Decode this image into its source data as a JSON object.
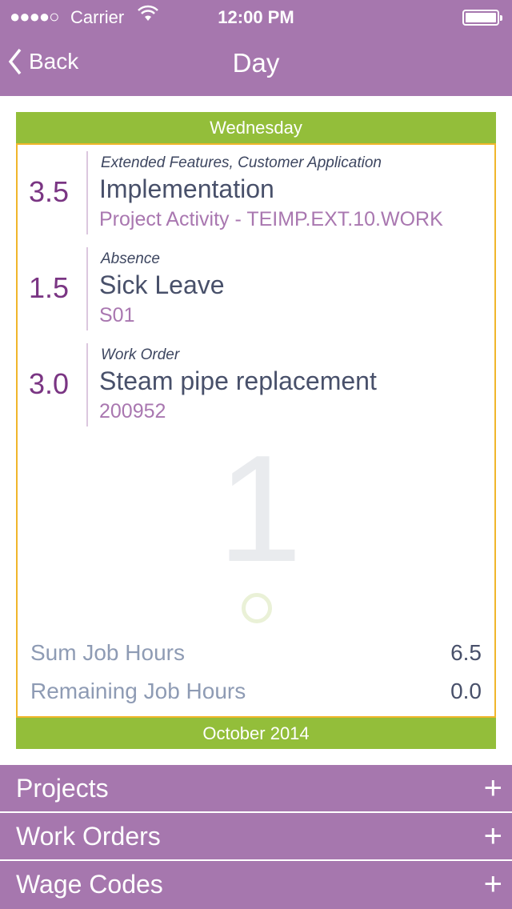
{
  "status_bar": {
    "signal": "●●●●○",
    "carrier": "Carrier",
    "time": "12:00 PM"
  },
  "nav": {
    "back_label": "Back",
    "title": "Day"
  },
  "day": {
    "weekday": "Wednesday",
    "watermark_day": "1",
    "month": "October 2014"
  },
  "entries": [
    {
      "hours": "3.5",
      "category": "Extended Features, Customer Application",
      "name": "Implementation",
      "code": "Project Activity - TEIMP.EXT.10.WORK"
    },
    {
      "hours": "1.5",
      "category": "Absence",
      "name": "Sick Leave",
      "code": "S01"
    },
    {
      "hours": "3.0",
      "category": "Work Order",
      "name": "Steam pipe replacement",
      "code": "200952"
    }
  ],
  "summary": {
    "sum_label": "Sum Job Hours",
    "sum_value": "6.5",
    "remaining_label": "Remaining Job Hours",
    "remaining_value": "0.0"
  },
  "sections": [
    {
      "label": "Projects",
      "icon": "+"
    },
    {
      "label": "Work Orders",
      "icon": "+"
    },
    {
      "label": "Wage Codes",
      "icon": "+"
    }
  ],
  "colors": {
    "purple": "#a677ae",
    "green": "#93be3a",
    "border": "#f0b62b",
    "hours": "#7a3583"
  }
}
